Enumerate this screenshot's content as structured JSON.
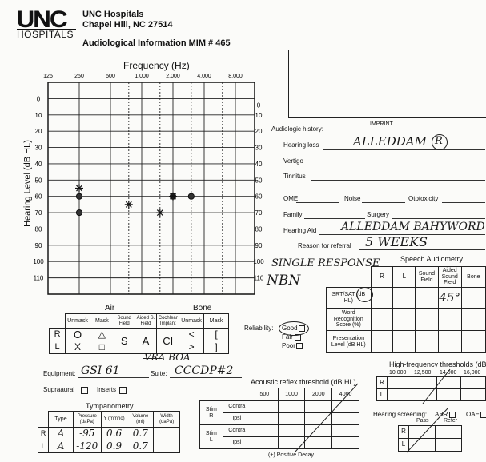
{
  "header": {
    "logo_main": "UNC",
    "logo_sub": "HOSPITALS",
    "org": "UNC Hospitals",
    "city": "Chapel Hill, NC  27514",
    "form_title": "Audiological Information  MIM # 465"
  },
  "audiogram": {
    "title": "Frequency (Hz)",
    "ylabel": "Hearing Level (dB HL)",
    "freq_ticks": [
      "125",
      "250",
      "500",
      "1,000",
      "2,000",
      "4,000",
      "8,000"
    ],
    "db_ticks": [
      "0",
      "10",
      "20",
      "30",
      "40",
      "50",
      "60",
      "70",
      "80",
      "90",
      "100",
      "110"
    ],
    "right_db_ticks": [
      "0",
      "10",
      "20",
      "30",
      "40",
      "50",
      "60",
      "70",
      "80",
      "90",
      "100",
      "110"
    ],
    "handwriting": [
      "SINGLE RESPONSE",
      "NBN"
    ]
  },
  "chart_data": {
    "type": "scatter",
    "title": "Frequency (Hz)",
    "xlabel": "",
    "ylabel": "Hearing Level (dB HL)",
    "x_ticks": [
      "125",
      "250",
      "500",
      "1,000",
      "2,000",
      "4,000",
      "8,000"
    ],
    "ylim": [
      -10,
      120
    ],
    "y_inverted": true,
    "series": [
      {
        "marker": "circle",
        "points": [
          {
            "x": 250,
            "y": 60
          },
          {
            "x": 250,
            "y": 70
          },
          {
            "x": 2000,
            "y": 60
          },
          {
            "x": 3000,
            "y": 60
          }
        ]
      },
      {
        "marker": "asterisk",
        "points": [
          {
            "x": 250,
            "y": 55
          },
          {
            "x": 750,
            "y": 65
          },
          {
            "x": 1500,
            "y": 70
          },
          {
            "x": 2000,
            "y": 60
          }
        ]
      }
    ]
  },
  "legend": {
    "air_label": "Air",
    "bone_label": "Bone",
    "cols": [
      "Unmask",
      "Mask",
      "Sound Field",
      "Aided S. Field",
      "Cochlear Implant",
      "Unmask",
      "Mask"
    ],
    "r_label": "R",
    "l_label": "L",
    "r_sym": [
      "O",
      "△",
      "S",
      "A",
      "CI",
      "<",
      "["
    ],
    "l_sym": [
      "X",
      "□",
      "",
      "",
      "",
      ">",
      "]"
    ]
  },
  "reliability": {
    "label": "Reliability:",
    "options": [
      "Good",
      "Fair",
      "Poor"
    ],
    "selected": "Good"
  },
  "history": {
    "imprint": "IMPRINT",
    "title": "Audiologic history:",
    "hearing_loss_label": "Hearing loss",
    "hearing_loss_value": "ALLEDDAM",
    "hearing_loss_circle": "R",
    "vertigo_label": "Vertigo",
    "tinnitus_label": "Tinnitus",
    "ome_label": "OME",
    "noise_label": "Noise",
    "ototox_label": "Ototoxicity",
    "family_label": "Family",
    "surgery_label": "Surgery",
    "hearing_aid_label": "Hearing Aid",
    "hearing_aid_value": "ALLEDDAM BAHYWORD",
    "referral_label": "Reason for referral",
    "referral_value": "5 WEEKS"
  },
  "speech": {
    "title": "Speech Audiometry",
    "cols": [
      "R",
      "L",
      "Sound Field",
      "Aided Sound Field",
      "Bone"
    ],
    "rows": [
      "SRT/SAT (dB HL)",
      "Word Recognition Score (%)",
      "Presentation Level (dB HL)"
    ],
    "value": "45°"
  },
  "equipment": {
    "equipment_label": "Equipment:",
    "equipment_value": "GSI 61",
    "above_suite": "VRA BOA",
    "suite_label": "Suite:",
    "suite_value": "CCCDP#2",
    "supraaural": "Supraaural",
    "inserts": "Inserts"
  },
  "tympanometry": {
    "title": "Tympanometry",
    "headers": [
      "Type",
      "Pressure (daPa)",
      "Y (mmho)",
      "Volume (ml)",
      "Width (daPa)"
    ],
    "rows": [
      {
        "side": "R",
        "type": "A",
        "pressure": "-95",
        "y": "0.6",
        "volume": "0.7",
        "width": ""
      },
      {
        "side": "L",
        "type": "A",
        "pressure": "-120",
        "y": "0.9",
        "volume": "0.7",
        "width": ""
      }
    ]
  },
  "reflex": {
    "title": "Acoustic reflex threshold (dB HL)",
    "freqs": [
      "500",
      "1000",
      "2000",
      "4000"
    ],
    "stim_label": "Stim",
    "contra": "Contra",
    "ipsi": "Ipsi",
    "r": "R",
    "l": "L",
    "footer": "(+) Positive Decay"
  },
  "hf": {
    "title": "High-frequency thresholds (dB HL)",
    "freqs": [
      "10,000",
      "12,500",
      "14,000",
      "16,000"
    ],
    "r": "R",
    "l": "L"
  },
  "screening": {
    "label": "Hearing screening:",
    "abr": "ABR",
    "oae": "OAE",
    "pass": "Pass",
    "refer": "Refer",
    "r": "R",
    "l": "L"
  }
}
